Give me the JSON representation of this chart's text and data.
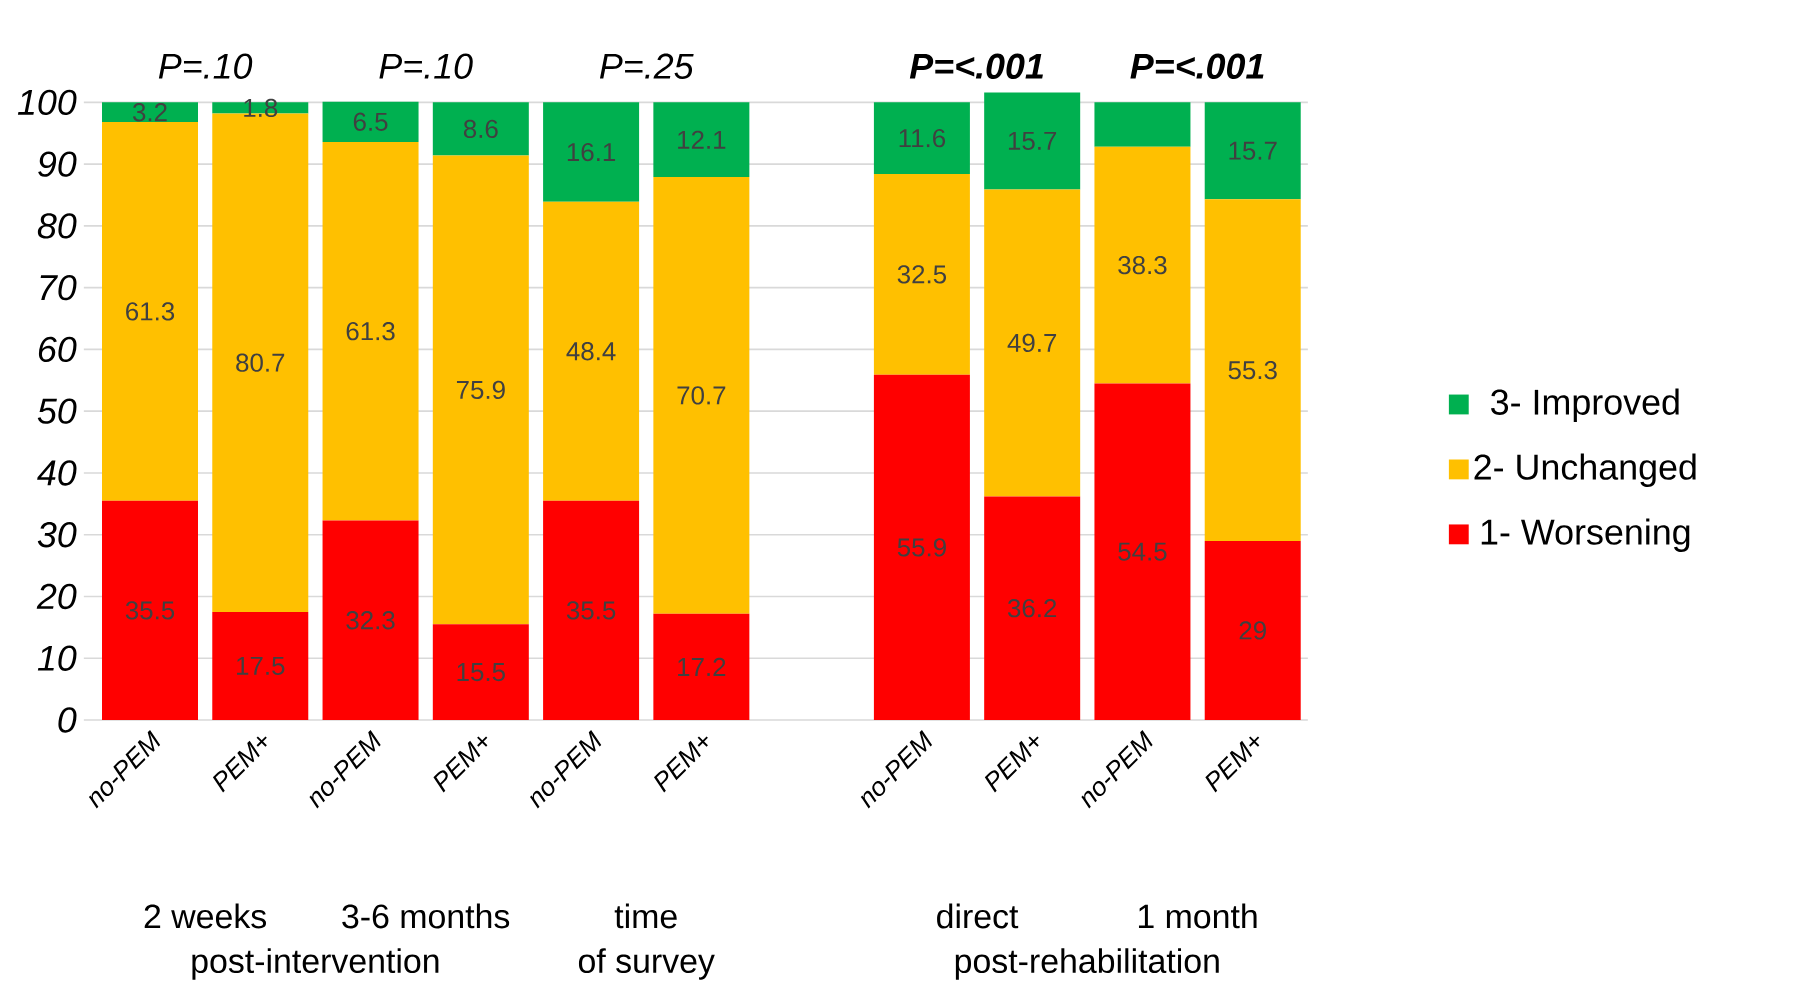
{
  "chart_data": {
    "type": "bar",
    "stacked": true,
    "categories": [
      "no-PEM",
      "PEM+",
      "no-PEM",
      "PEM+",
      "no-PEM",
      "PEM+",
      null,
      "no-PEM",
      "PEM+",
      "no-PEM",
      "PEM+"
    ],
    "series": [
      {
        "name": "1- Worsening",
        "color": "#ff0000",
        "values": [
          35.5,
          17.5,
          32.3,
          15.5,
          35.5,
          17.2,
          null,
          55.9,
          36.2,
          54.5,
          29
        ],
        "value_labels": [
          "35.5",
          "17.5",
          "32.3",
          "15.5",
          "35.5",
          "17.2",
          null,
          "55.9",
          "36.2",
          "54.5",
          "29"
        ]
      },
      {
        "name": "2- Unchanged",
        "color": "#ffc000",
        "values": [
          61.3,
          80.7,
          61.3,
          75.9,
          48.4,
          70.7,
          null,
          32.5,
          49.7,
          38.3,
          55.3
        ],
        "value_labels": [
          "61.3",
          "80.7",
          "61.3",
          "75.9",
          "48.4",
          "70.7",
          null,
          "32.5",
          "49.7",
          "38.3",
          "55.3"
        ]
      },
      {
        "name": "3- Improved",
        "color": "#00b050",
        "values": [
          3.2,
          1.8,
          6.5,
          8.6,
          16.1,
          12.1,
          null,
          11.6,
          15.7,
          7.2,
          15.7
        ],
        "value_labels": [
          "3.2",
          "1.8",
          "6.5",
          "8.6",
          "16.1",
          "12.1",
          null,
          "11.6",
          "15.7",
          null,
          "15.7"
        ]
      }
    ],
    "ylim": [
      0,
      102
    ],
    "yticks": [
      0,
      10,
      20,
      30,
      40,
      50,
      60,
      70,
      80,
      90,
      100
    ],
    "grid": "y",
    "legend": "right",
    "annotations": [
      "P=.10",
      "P=.10",
      "P=.25",
      "P=<.001",
      "P=<.001",
      "2 weeks",
      "3-6 months",
      "post-intervention",
      "time",
      "of survey",
      "direct",
      "1 month",
      "post-rehabilitation"
    ]
  }
}
